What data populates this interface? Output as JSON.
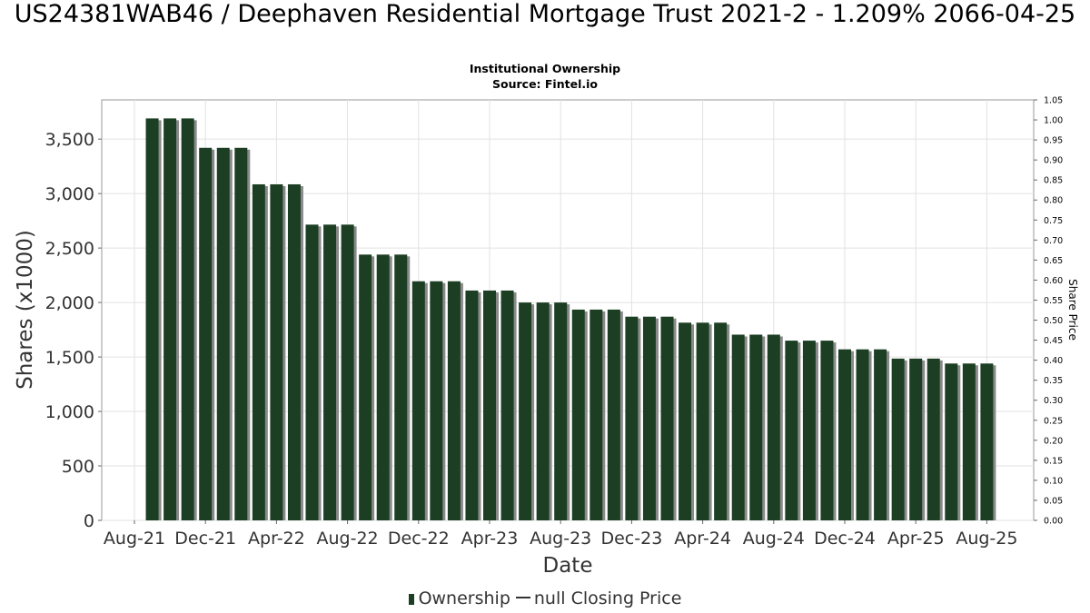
{
  "chart_data": {
    "type": "bar",
    "title": "US24381WAB46 / Deephaven Residential Mortgage Trust 2021-2 - 1.209% 2066-04-25",
    "subtitle": "Institutional Ownership",
    "source": "Source: Fintel.io",
    "xlabel": "Date",
    "ylabel": "Shares (x1000)",
    "y2label": "Share Price",
    "ylim": [
      0,
      3860
    ],
    "y2lim": [
      0,
      1.05
    ],
    "yticks": [
      "0",
      "500",
      "1,000",
      "1,500",
      "2,000",
      "2,500",
      "3,000",
      "3,500"
    ],
    "y2ticks": [
      "0.00",
      "0.05",
      "0.10",
      "0.15",
      "0.20",
      "0.25",
      "0.30",
      "0.35",
      "0.40",
      "0.45",
      "0.50",
      "0.55",
      "0.60",
      "0.65",
      "0.70",
      "0.75",
      "0.80",
      "0.85",
      "0.90",
      "0.95",
      "1.00",
      "1.05"
    ],
    "xticks": [
      "Aug-21",
      "Dec-21",
      "Apr-22",
      "Aug-22",
      "Dec-22",
      "Apr-23",
      "Aug-23",
      "Dec-23",
      "Apr-24",
      "Aug-24",
      "Dec-24",
      "Apr-25",
      "Aug-25"
    ],
    "grid": true,
    "legend_position": "bottom",
    "series": [
      {
        "name": "Ownership",
        "color": "#1c3f24",
        "values": [
          3690,
          3690,
          3690,
          3420,
          3420,
          3420,
          3085,
          3085,
          3085,
          2715,
          2715,
          2715,
          2440,
          2440,
          2440,
          2195,
          2195,
          2195,
          2110,
          2110,
          2110,
          2000,
          2000,
          2000,
          1935,
          1935,
          1935,
          1870,
          1870,
          1870,
          1815,
          1815,
          1815,
          1705,
          1705,
          1705,
          1650,
          1650,
          1650,
          1570,
          1570,
          1570,
          1485,
          1485,
          1485,
          1440,
          1440,
          1440
        ]
      }
    ],
    "legend": {
      "ownership_label": "Ownership",
      "price_label": "null Closing Price"
    }
  }
}
